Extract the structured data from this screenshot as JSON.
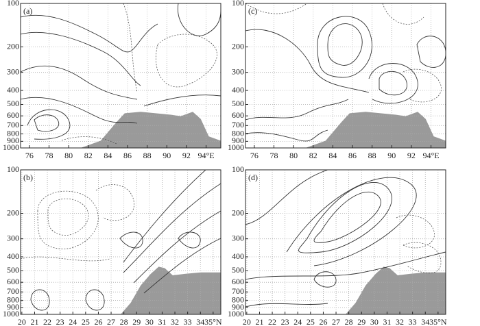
{
  "chart_data": [
    {
      "type": "contour",
      "panel_label": "(a)",
      "ylog": true,
      "grid": true,
      "xlim": [
        75.1,
        95.5
      ],
      "xticks": [
        76,
        78,
        80,
        82,
        84,
        86,
        88,
        90,
        92,
        {
          "value": 94,
          "label": "94°E"
        }
      ],
      "ylim": [
        1000,
        100
      ],
      "yticks": [
        100,
        200,
        300,
        400,
        500,
        600,
        700,
        800,
        900,
        1000
      ]
    },
    {
      "type": "contour",
      "panel_label": "(c)",
      "ylog": true,
      "grid": true,
      "xlim": [
        75.1,
        95.5
      ],
      "xticks": [
        76,
        78,
        80,
        82,
        84,
        86,
        88,
        90,
        92,
        {
          "value": 94,
          "label": "94°E"
        }
      ],
      "ylim": [
        1000,
        100
      ],
      "yticks": [
        100,
        200,
        300,
        400,
        500,
        600,
        700,
        800,
        900,
        1000
      ]
    },
    {
      "type": "contour",
      "panel_label": "(b)",
      "ylog": true,
      "grid": true,
      "xlim": [
        19.9,
        35.6
      ],
      "xticks": [
        20,
        21,
        22,
        23,
        24,
        25,
        26,
        27,
        28,
        29,
        30,
        31,
        32,
        33,
        34,
        {
          "value": 35,
          "label": "35°N"
        }
      ],
      "ylim": [
        1000,
        100
      ],
      "yticks": [
        100,
        200,
        300,
        400,
        500,
        600,
        700,
        800,
        900,
        1000
      ]
    },
    {
      "type": "contour",
      "panel_label": "(d)",
      "ylog": true,
      "grid": true,
      "xlim": [
        19.9,
        35.6
      ],
      "xticks": [
        20,
        21,
        22,
        23,
        24,
        25,
        26,
        27,
        28,
        29,
        30,
        31,
        32,
        33,
        34,
        {
          "value": 35,
          "label": "35°N"
        }
      ],
      "ylim": [
        1000,
        100
      ],
      "yticks": [
        100,
        200,
        300,
        400,
        500,
        600,
        700,
        800,
        900,
        1000
      ]
    }
  ]
}
